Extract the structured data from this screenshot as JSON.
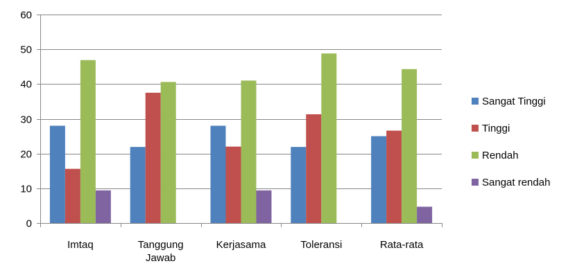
{
  "chart_data": {
    "type": "bar",
    "categories": [
      [
        "Imtaq"
      ],
      [
        "Tanggung",
        "Jawab"
      ],
      [
        "Kerjasama"
      ],
      [
        "Toleransi"
      ],
      [
        "Rata-rata"
      ]
    ],
    "series": [
      {
        "name": "Sangat Tinggi",
        "color": "#4F81BD",
        "values": [
          28,
          21.9,
          28,
          21.9,
          25
        ]
      },
      {
        "name": "Tinggi",
        "color": "#C0504D",
        "values": [
          15.6,
          37.5,
          22,
          31.3,
          26.6
        ]
      },
      {
        "name": "Rendah",
        "color": "#9BBB59",
        "values": [
          46.9,
          40.6,
          41,
          48.8,
          44.3
        ]
      },
      {
        "name": "Sangat rendah",
        "color": "#8064A2",
        "values": [
          9.4,
          0,
          9.4,
          0,
          4.7
        ]
      }
    ],
    "yticks": [
      "0",
      "10",
      "20",
      "30",
      "40",
      "50",
      "60"
    ],
    "ylim": [
      0,
      60
    ],
    "grid": true,
    "legend_position": "right",
    "title": "",
    "xlabel": "",
    "ylabel": ""
  }
}
